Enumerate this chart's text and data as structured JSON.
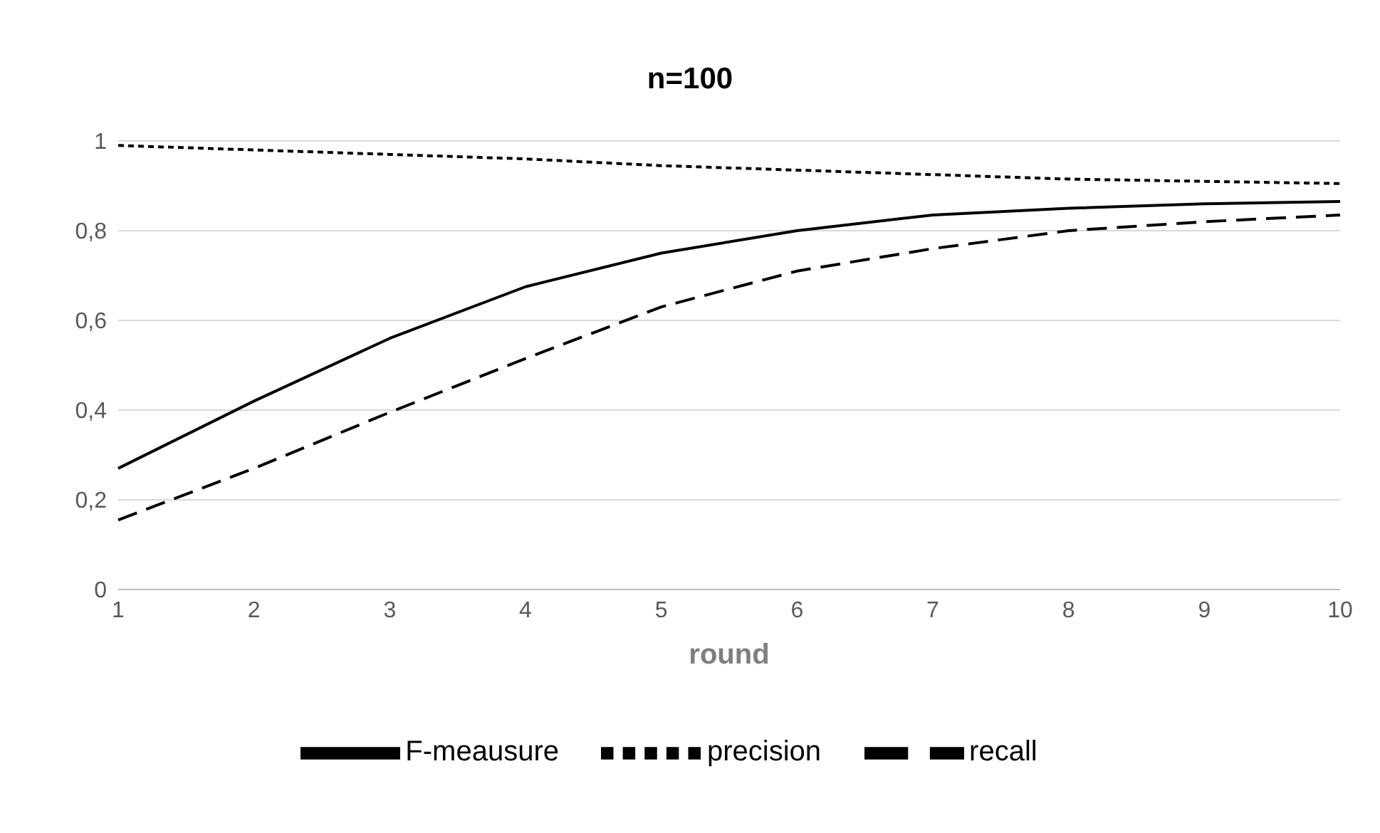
{
  "chart_data": {
    "type": "line",
    "title": "n=100",
    "xlabel": "round",
    "categories": [
      "1",
      "2",
      "3",
      "4",
      "5",
      "6",
      "7",
      "8",
      "9",
      "10"
    ],
    "series": [
      {
        "name": "precision",
        "color": "#000000",
        "line_style": "dotted",
        "values": [
          0.99,
          0.98,
          0.97,
          0.96,
          0.945,
          0.935,
          0.925,
          0.915,
          0.91,
          0.905
        ]
      },
      {
        "name": "recall",
        "color": "#000000",
        "line_style": "dashed",
        "values": [
          0.155,
          0.27,
          0.395,
          0.515,
          0.63,
          0.71,
          0.76,
          0.8,
          0.82,
          0.835
        ]
      },
      {
        "name": "F-meausure",
        "color": "#000000",
        "line_style": "solid",
        "values": [
          0.27,
          0.42,
          0.56,
          0.675,
          0.75,
          0.8,
          0.835,
          0.85,
          0.86,
          0.865
        ]
      }
    ],
    "ylim": [
      0,
      1
    ],
    "yticks": [
      {
        "value": 0,
        "label": "0"
      },
      {
        "value": 0.2,
        "label": "0,2"
      },
      {
        "value": 0.4,
        "label": "0,4"
      },
      {
        "value": 0.6,
        "label": "0,6"
      },
      {
        "value": 0.8,
        "label": "0,8"
      },
      {
        "value": 1,
        "label": "1"
      }
    ],
    "grid": "y",
    "legend": "bottom",
    "marker": "none"
  }
}
